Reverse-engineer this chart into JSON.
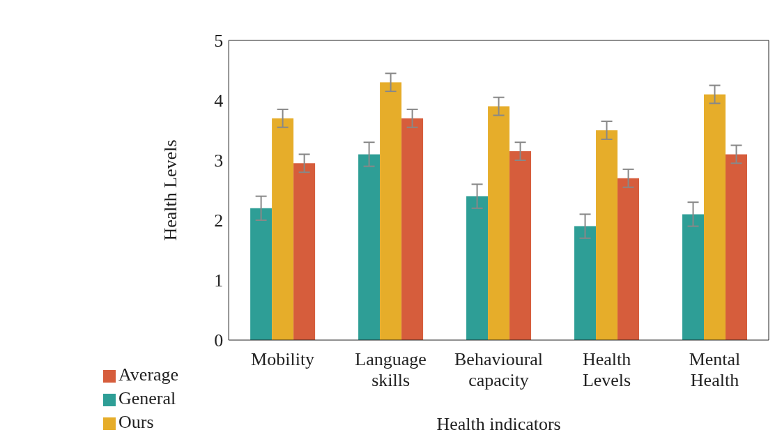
{
  "chart_data": {
    "type": "bar",
    "xlabel": "Health indicators",
    "ylabel": "Health Levels",
    "categories": [
      "Mobility",
      "Language skills",
      "Behavioural capacity",
      "Health Levels",
      "Mental Health"
    ],
    "series": [
      {
        "name": "General",
        "color": "#2e9e96",
        "values": [
          2.2,
          3.1,
          2.4,
          1.9,
          2.1
        ],
        "errors": [
          0.2,
          0.2,
          0.2,
          0.2,
          0.2
        ]
      },
      {
        "name": "Ours",
        "color": "#e6ad2a",
        "values": [
          3.7,
          4.3,
          3.9,
          3.5,
          4.1
        ],
        "errors": [
          0.15,
          0.15,
          0.15,
          0.15,
          0.15
        ]
      },
      {
        "name": "Average",
        "color": "#d65d3c",
        "values": [
          2.95,
          3.7,
          3.15,
          2.7,
          3.1
        ],
        "errors": [
          0.15,
          0.15,
          0.15,
          0.15,
          0.15
        ]
      }
    ],
    "ylim": [
      0,
      5
    ],
    "yticks": [
      0,
      1,
      2,
      3,
      4,
      5
    ],
    "grid": false,
    "legend": "bottom left"
  }
}
